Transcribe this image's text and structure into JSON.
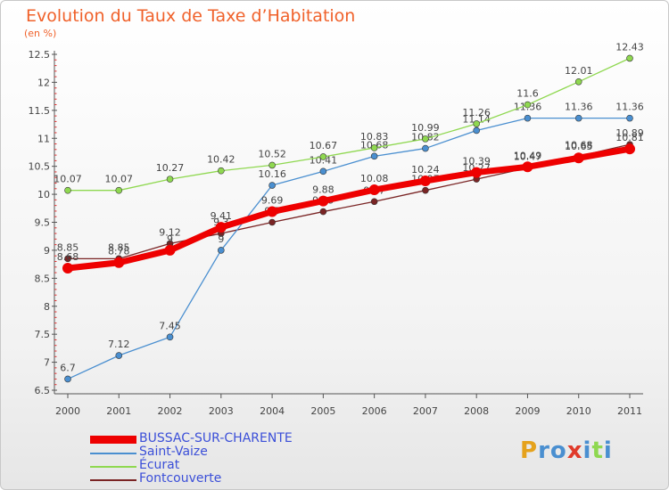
{
  "page": {
    "title": "Evolution du Taux de Taxe d’Habitation",
    "unit": "(en %)"
  },
  "chart_data": {
    "type": "line",
    "x": [
      2000,
      2001,
      2002,
      2003,
      2004,
      2005,
      2006,
      2007,
      2008,
      2009,
      2010,
      2011
    ],
    "ylim": [
      6.5,
      12.5
    ],
    "yticks": [
      6.5,
      7,
      7.5,
      8,
      8.5,
      9,
      9.5,
      10,
      10.5,
      11,
      11.5,
      12,
      12.5
    ],
    "ytick_labels": [
      "6.5",
      "7",
      "7.5",
      "8",
      "8.5",
      "9",
      "9.5",
      "10",
      "10.5",
      "11",
      "11.5",
      "12",
      "12.5"
    ],
    "grid": false,
    "legend_position": "bottom-left",
    "series": [
      {
        "name": "Fontcouverte",
        "color": "#7a2424",
        "values": [
          8.85,
          8.85,
          9.12,
          9.3,
          9.5,
          9.69,
          9.87,
          10.07,
          10.27,
          10.47,
          10.68,
          10.89
        ],
        "labels": [
          "8.85",
          "8.85",
          "9.12",
          "9.3",
          "9.5",
          "9.69",
          "9.87",
          "10.07",
          "10.27",
          "10.47",
          "10.68",
          "10.89"
        ]
      },
      {
        "name": "Saint-Vaize",
        "color": "#4a8fd0",
        "values": [
          6.7,
          7.12,
          7.45,
          9.0,
          10.16,
          10.41,
          10.68,
          10.82,
          11.14,
          11.36,
          11.36,
          11.36
        ],
        "labels": [
          "6.7",
          "7.12",
          "7.45",
          "9",
          "10.16",
          "10.41",
          "10.68",
          "10.82",
          "11.14",
          "11.36",
          "11.36",
          "11.36"
        ]
      },
      {
        "name": "Écurat",
        "color": "#8fd850",
        "values": [
          10.07,
          10.07,
          10.27,
          10.42,
          10.52,
          10.67,
          10.83,
          10.99,
          11.26,
          11.6,
          12.01,
          12.43
        ],
        "labels": [
          "10.07",
          "10.07",
          "10.27",
          "10.42",
          "10.52",
          "10.67",
          "10.83",
          "10.99",
          "11.26",
          "11.6",
          "12.01",
          "12.43"
        ]
      },
      {
        "name": "BUSSAC-SUR-CHARENTE",
        "color": "#ee0000",
        "values": [
          8.68,
          8.78,
          9.0,
          9.41,
          9.69,
          9.88,
          10.08,
          10.24,
          10.39,
          10.49,
          10.65,
          10.81
        ],
        "labels": [
          "8.68",
          "8.78",
          "9",
          "9.41",
          "9.69",
          "9.88",
          "10.08",
          "10.24",
          "10.39",
          "10.49",
          "10.65",
          "10.81"
        ]
      }
    ],
    "legend": [
      "BUSSAC-SUR-CHARENTE",
      "Saint-Vaize",
      "Écurat",
      "Fontcouverte"
    ]
  },
  "logo": {
    "text": "Proxiti",
    "letters": [
      {
        "ch": "P",
        "color": "#e5a21c"
      },
      {
        "ch": "r",
        "color": "#4a8fd0"
      },
      {
        "ch": "o",
        "color": "#4a8fd0"
      },
      {
        "ch": "x",
        "color": "#e03a2a"
      },
      {
        "ch": "i",
        "color": "#4a8fd0"
      },
      {
        "ch": "t",
        "color": "#8fd850"
      },
      {
        "ch": "i",
        "color": "#4a8fd0"
      }
    ]
  }
}
